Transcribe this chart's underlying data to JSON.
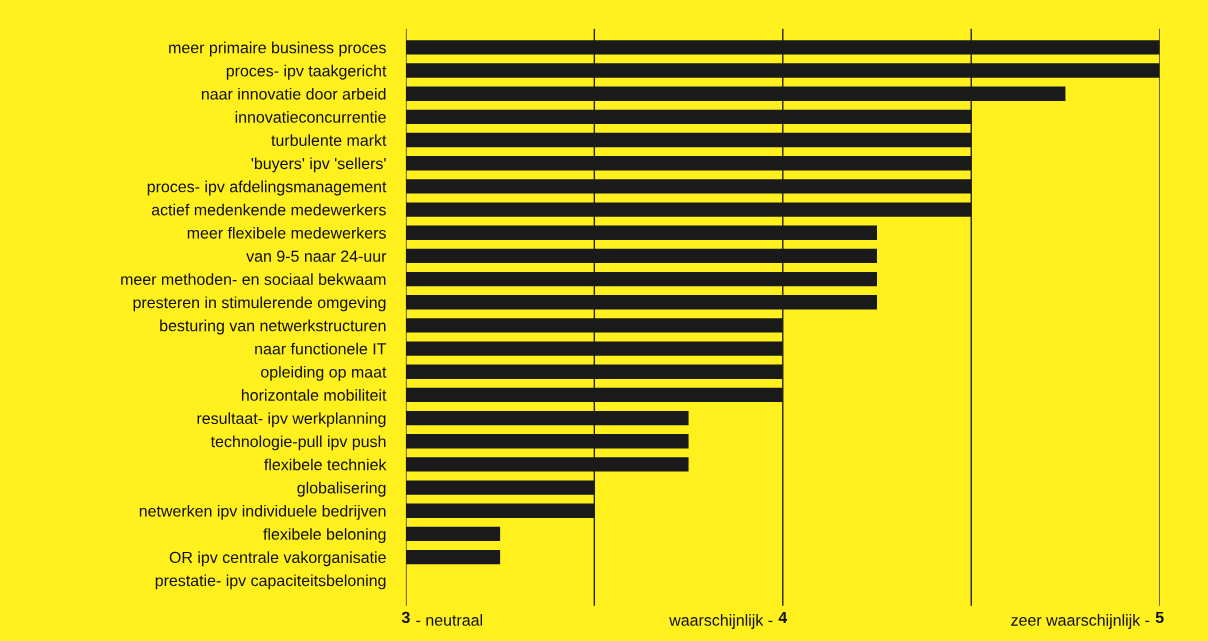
{
  "chart_data": {
    "type": "bar",
    "orientation": "horizontal",
    "categories": [
      "meer primaire business proces",
      "proces- ipv taakgericht",
      "naar innovatie door arbeid",
      "innovatieconcurrentie",
      "turbulente markt",
      "'buyers' ipv 'sellers'",
      "proces- ipv afdelingsmanagement",
      "actief medenkende medewerkers",
      "meer flexibele medewerkers",
      "van 9-5 naar 24-uur",
      "meer methoden- en sociaal bekwaam",
      "presteren in stimulerende omgeving",
      "besturing van netwerkstructuren",
      "naar functionele IT",
      "opleiding op maat",
      "horizontale mobiliteit",
      "resultaat- ipv werkplanning",
      "technologie-pull ipv push",
      "flexibele techniek",
      "globalisering",
      "netwerken ipv individuele bedrijven",
      "flexibele beloning",
      "OR ipv centrale vakorganisatie",
      "prestatie- ipv capaciteitsbeloning"
    ],
    "values": [
      2,
      2,
      1.75,
      1.5,
      1.5,
      1.5,
      1.5,
      1.5,
      1.25,
      1.25,
      1.25,
      1.25,
      1,
      1,
      1,
      1,
      0.75,
      0.75,
      0.75,
      0.5,
      0.5,
      0.25,
      0.25,
      0
    ],
    "base": [
      3,
      3,
      3,
      3,
      3,
      3,
      3,
      3,
      3,
      3,
      3,
      3,
      3,
      3,
      3,
      3,
      3,
      3,
      3,
      3,
      3,
      3,
      3,
      null
    ],
    "color": "#1a1a1a",
    "xlim": [
      3,
      5
    ],
    "xticks": [
      3,
      {
        "value": 3.5,
        "label": null
      },
      4,
      {
        "value": 4.5,
        "label": null
      },
      5
    ],
    "annotations": [
      "- neutraal",
      "waarschijnlijk -",
      "zeer waarschijnlijk -"
    ],
    "grid": "x"
  }
}
